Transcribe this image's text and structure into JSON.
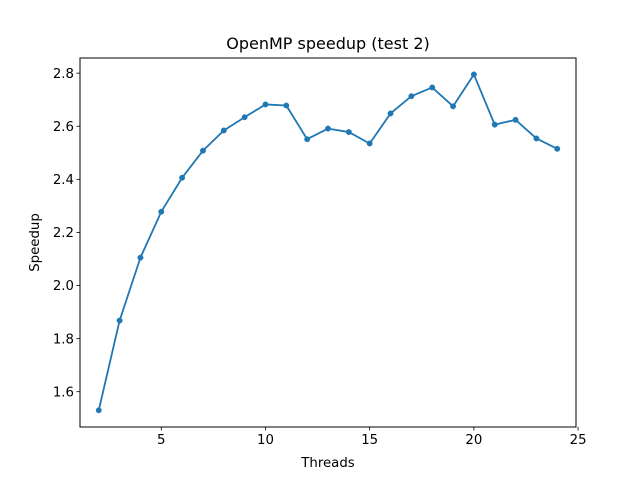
{
  "chart_data": {
    "type": "line",
    "title": "OpenMP speedup (test 2)",
    "xlabel": "Threads",
    "ylabel": "Speedup",
    "xlim": [
      1.1,
      24.9
    ],
    "ylim": [
      1.467,
      2.857
    ],
    "xticks": [
      5,
      10,
      15,
      20,
      25
    ],
    "yticks": [
      1.6,
      1.8,
      2.0,
      2.2,
      2.4,
      2.6,
      2.8
    ],
    "xtick_labels": [
      "5",
      "10",
      "15",
      "20",
      "25"
    ],
    "ytick_labels": [
      "1.6",
      "1.8",
      "2.0",
      "2.2",
      "2.4",
      "2.6",
      "2.8"
    ],
    "grid": false,
    "legend": "none",
    "series": [
      {
        "color": "#1f77b4",
        "marker": "circle",
        "x": [
          2,
          3,
          4,
          5,
          6,
          7,
          8,
          9,
          10,
          11,
          12,
          13,
          14,
          15,
          16,
          17,
          18,
          19,
          20,
          21,
          22,
          23,
          24
        ],
        "values": [
          1.53,
          1.868,
          2.105,
          2.278,
          2.406,
          2.508,
          2.584,
          2.634,
          2.682,
          2.678,
          2.551,
          2.591,
          2.578,
          2.535,
          2.648,
          2.713,
          2.746,
          2.675,
          2.795,
          2.606,
          2.624,
          2.554,
          2.515
        ]
      }
    ]
  }
}
